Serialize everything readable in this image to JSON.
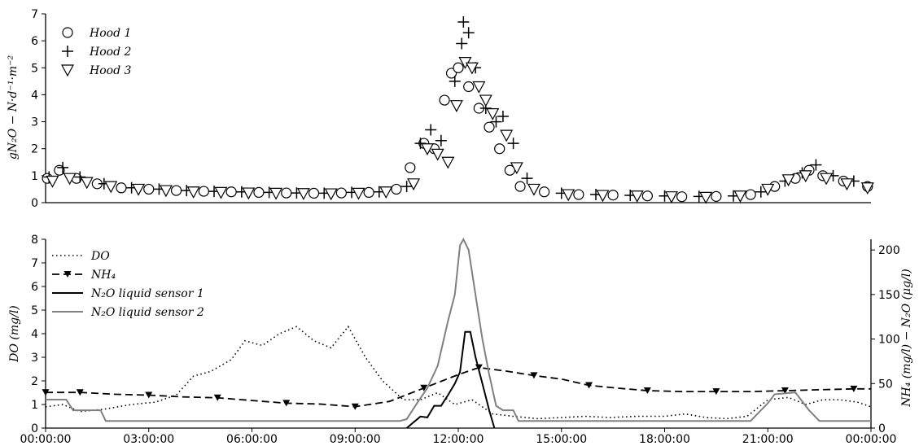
{
  "chart_data": [
    {
      "type": "scatter",
      "ylabel": "gN₂O − N·d⁻¹·m⁻²",
      "ylim": [
        0,
        7
      ],
      "y_ticks": [
        "0",
        "1",
        "2",
        "3",
        "4",
        "5",
        "6",
        "7"
      ],
      "legend_position": "top-left",
      "series": [
        {
          "name": "Hood 1",
          "marker": "circle",
          "points": [
            [
              0.05,
              0.9
            ],
            [
              0.4,
              1.2
            ],
            [
              0.9,
              0.9
            ],
            [
              1.5,
              0.7
            ],
            [
              2.2,
              0.55
            ],
            [
              3.0,
              0.5
            ],
            [
              3.8,
              0.45
            ],
            [
              4.6,
              0.42
            ],
            [
              5.4,
              0.4
            ],
            [
              6.2,
              0.38
            ],
            [
              7.0,
              0.36
            ],
            [
              7.8,
              0.35
            ],
            [
              8.6,
              0.36
            ],
            [
              9.4,
              0.38
            ],
            [
              10.2,
              0.5
            ],
            [
              10.6,
              1.3
            ],
            [
              11.0,
              2.2
            ],
            [
              11.3,
              2.0
            ],
            [
              11.6,
              3.8
            ],
            [
              11.8,
              4.8
            ],
            [
              12.0,
              5.0
            ],
            [
              12.3,
              4.3
            ],
            [
              12.6,
              3.5
            ],
            [
              12.9,
              2.8
            ],
            [
              13.2,
              2.0
            ],
            [
              13.5,
              1.2
            ],
            [
              13.8,
              0.6
            ],
            [
              14.5,
              0.4
            ],
            [
              15.5,
              0.3
            ],
            [
              16.5,
              0.28
            ],
            [
              17.5,
              0.25
            ],
            [
              18.5,
              0.22
            ],
            [
              19.5,
              0.23
            ],
            [
              20.5,
              0.3
            ],
            [
              21.2,
              0.6
            ],
            [
              21.8,
              0.9
            ],
            [
              22.2,
              1.2
            ],
            [
              22.6,
              1.0
            ],
            [
              23.2,
              0.8
            ],
            [
              23.9,
              0.6
            ]
          ]
        },
        {
          "name": "Hood 2",
          "marker": "plus",
          "points": [
            [
              0.1,
              0.95
            ],
            [
              0.5,
              1.3
            ],
            [
              1.0,
              0.95
            ],
            [
              1.7,
              0.7
            ],
            [
              2.5,
              0.55
            ],
            [
              3.3,
              0.5
            ],
            [
              4.1,
              0.45
            ],
            [
              4.9,
              0.42
            ],
            [
              5.7,
              0.4
            ],
            [
              6.5,
              0.38
            ],
            [
              7.3,
              0.36
            ],
            [
              8.1,
              0.35
            ],
            [
              8.9,
              0.38
            ],
            [
              9.7,
              0.4
            ],
            [
              10.5,
              0.6
            ],
            [
              10.9,
              2.2
            ],
            [
              11.2,
              2.7
            ],
            [
              11.5,
              2.3
            ],
            [
              11.9,
              4.5
            ],
            [
              12.1,
              5.9
            ],
            [
              12.15,
              6.7
            ],
            [
              12.3,
              6.3
            ],
            [
              12.5,
              5.0
            ],
            [
              12.8,
              3.5
            ],
            [
              13.1,
              3.0
            ],
            [
              13.3,
              3.2
            ],
            [
              13.6,
              2.2
            ],
            [
              14.0,
              0.9
            ],
            [
              15.0,
              0.35
            ],
            [
              16.0,
              0.3
            ],
            [
              17.0,
              0.27
            ],
            [
              18.0,
              0.25
            ],
            [
              19.0,
              0.23
            ],
            [
              20.0,
              0.25
            ],
            [
              20.8,
              0.4
            ],
            [
              21.5,
              0.8
            ],
            [
              22.0,
              1.1
            ],
            [
              22.4,
              1.4
            ],
            [
              22.9,
              1.0
            ],
            [
              23.5,
              0.8
            ]
          ]
        },
        {
          "name": "Hood 3",
          "marker": "triangle-down",
          "points": [
            [
              0.2,
              0.8
            ],
            [
              0.7,
              0.9
            ],
            [
              1.2,
              0.75
            ],
            [
              1.9,
              0.6
            ],
            [
              2.7,
              0.5
            ],
            [
              3.5,
              0.45
            ],
            [
              4.3,
              0.4
            ],
            [
              5.1,
              0.38
            ],
            [
              5.9,
              0.36
            ],
            [
              6.7,
              0.35
            ],
            [
              7.5,
              0.34
            ],
            [
              8.3,
              0.33
            ],
            [
              9.1,
              0.35
            ],
            [
              9.9,
              0.4
            ],
            [
              10.7,
              0.7
            ],
            [
              11.1,
              2.0
            ],
            [
              11.4,
              1.8
            ],
            [
              11.7,
              1.5
            ],
            [
              11.95,
              3.6
            ],
            [
              12.2,
              5.2
            ],
            [
              12.4,
              5.0
            ],
            [
              12.6,
              4.3
            ],
            [
              12.8,
              3.8
            ],
            [
              13.0,
              3.3
            ],
            [
              13.4,
              2.5
            ],
            [
              13.7,
              1.3
            ],
            [
              14.2,
              0.5
            ],
            [
              15.2,
              0.3
            ],
            [
              16.2,
              0.27
            ],
            [
              17.2,
              0.25
            ],
            [
              18.2,
              0.22
            ],
            [
              19.2,
              0.2
            ],
            [
              20.2,
              0.25
            ],
            [
              21.0,
              0.5
            ],
            [
              21.6,
              0.85
            ],
            [
              22.1,
              1.0
            ],
            [
              22.7,
              0.9
            ],
            [
              23.3,
              0.7
            ],
            [
              23.9,
              0.55
            ]
          ]
        }
      ]
    },
    {
      "type": "line",
      "x_ticks": [
        "00:00:00",
        "03:00:00",
        "06:00:00",
        "09:00:00",
        "12:00:00",
        "15:00:00",
        "18:00:00",
        "21:00:00",
        "00:00:00"
      ],
      "x_range_hours": [
        0,
        24
      ],
      "ylabel_left": "DO (mg/l)",
      "ylim_left": [
        0,
        8
      ],
      "y_ticks_left": [
        "0",
        "1",
        "2",
        "3",
        "4",
        "5",
        "6",
        "7",
        "8"
      ],
      "ylabel_right": "NH₄ (mg/l) − N₂O (μg/l)",
      "ylim_right": [
        0,
        212
      ],
      "y_ticks_right": [
        "0",
        "50",
        "100",
        "150",
        "200"
      ],
      "legend_position": "top-left",
      "series": [
        {
          "name": "DO",
          "style": "dotted",
          "axis": "left",
          "points": [
            [
              0,
              0.9
            ],
            [
              0.5,
              1.0
            ],
            [
              1.0,
              0.7
            ],
            [
              1.7,
              0.8
            ],
            [
              2.5,
              1.0
            ],
            [
              3.2,
              1.1
            ],
            [
              3.8,
              1.4
            ],
            [
              4.3,
              2.2
            ],
            [
              4.8,
              2.4
            ],
            [
              5.4,
              2.9
            ],
            [
              5.8,
              3.7
            ],
            [
              6.3,
              3.5
            ],
            [
              6.8,
              4.0
            ],
            [
              7.3,
              4.3
            ],
            [
              7.8,
              3.7
            ],
            [
              8.3,
              3.4
            ],
            [
              8.8,
              4.3
            ],
            [
              9.3,
              3.0
            ],
            [
              9.8,
              2.0
            ],
            [
              10.4,
              1.2
            ],
            [
              10.9,
              1.2
            ],
            [
              11.4,
              1.5
            ],
            [
              11.9,
              1.0
            ],
            [
              12.4,
              1.2
            ],
            [
              13.0,
              0.6
            ],
            [
              13.6,
              0.5
            ],
            [
              14.3,
              0.4
            ],
            [
              15.0,
              0.45
            ],
            [
              15.7,
              0.5
            ],
            [
              16.4,
              0.45
            ],
            [
              17.2,
              0.5
            ],
            [
              18.0,
              0.5
            ],
            [
              18.6,
              0.6
            ],
            [
              19.2,
              0.45
            ],
            [
              19.8,
              0.4
            ],
            [
              20.4,
              0.5
            ],
            [
              21.0,
              1.2
            ],
            [
              21.6,
              1.3
            ],
            [
              22.1,
              1.0
            ],
            [
              22.6,
              1.2
            ],
            [
              23.1,
              1.2
            ],
            [
              23.6,
              1.1
            ],
            [
              24,
              0.9
            ]
          ]
        },
        {
          "name": "NH₄",
          "style": "dashed-triangle",
          "axis": "right",
          "points": [
            [
              0,
              40
            ],
            [
              1.0,
              40
            ],
            [
              2.0,
              38
            ],
            [
              3.0,
              37
            ],
            [
              4.0,
              35
            ],
            [
              5.0,
              34
            ],
            [
              6.0,
              31
            ],
            [
              7.0,
              28
            ],
            [
              8.0,
              27
            ],
            [
              9.0,
              24
            ],
            [
              10.0,
              30
            ],
            [
              11.0,
              45
            ],
            [
              12.0,
              60
            ],
            [
              12.6,
              68
            ],
            [
              13.4,
              64
            ],
            [
              14.2,
              59
            ],
            [
              15.0,
              55
            ],
            [
              15.8,
              48
            ],
            [
              16.6,
              45
            ],
            [
              17.5,
              42
            ],
            [
              18.5,
              41
            ],
            [
              19.5,
              41
            ],
            [
              20.5,
              41
            ],
            [
              21.5,
              42
            ],
            [
              22.5,
              43
            ],
            [
              23.5,
              44
            ],
            [
              24,
              44
            ]
          ]
        },
        {
          "name": "N₂O liquid sensor 1",
          "style": "solid-black",
          "axis": "right",
          "points": [
            [
              10.5,
              0
            ],
            [
              10.9,
              13
            ],
            [
              11.1,
              12
            ],
            [
              11.3,
              25
            ],
            [
              11.5,
              25
            ],
            [
              11.7,
              37
            ],
            [
              11.9,
              50
            ],
            [
              12.05,
              63
            ],
            [
              12.2,
              108
            ],
            [
              12.35,
              108
            ],
            [
              12.5,
              80
            ],
            [
              12.7,
              50
            ],
            [
              12.9,
              20
            ],
            [
              13.05,
              0
            ]
          ]
        },
        {
          "name": "N₂O liquid sensor 2",
          "style": "solid-gray",
          "axis": "right",
          "points": [
            [
              0,
              32
            ],
            [
              0.6,
              32
            ],
            [
              0.8,
              20
            ],
            [
              1.2,
              20
            ],
            [
              1.6,
              20
            ],
            [
              1.75,
              8
            ],
            [
              10.3,
              8
            ],
            [
              10.5,
              10
            ],
            [
              10.8,
              28
            ],
            [
              11.1,
              45
            ],
            [
              11.4,
              70
            ],
            [
              11.7,
              120
            ],
            [
              11.9,
              150
            ],
            [
              12.05,
              205
            ],
            [
              12.15,
              212
            ],
            [
              12.3,
              200
            ],
            [
              12.5,
              150
            ],
            [
              12.7,
              100
            ],
            [
              12.9,
              60
            ],
            [
              13.1,
              25
            ],
            [
              13.3,
              20
            ],
            [
              13.6,
              20
            ],
            [
              13.75,
              8
            ],
            [
              20.5,
              8
            ],
            [
              21.0,
              28
            ],
            [
              21.2,
              38
            ],
            [
              21.8,
              40
            ],
            [
              22.2,
              20
            ],
            [
              22.5,
              8
            ],
            [
              24,
              8
            ]
          ]
        }
      ]
    }
  ],
  "colors": {
    "axis": "#000000",
    "sensor2": "#808080",
    "sensor1": "#000000"
  }
}
